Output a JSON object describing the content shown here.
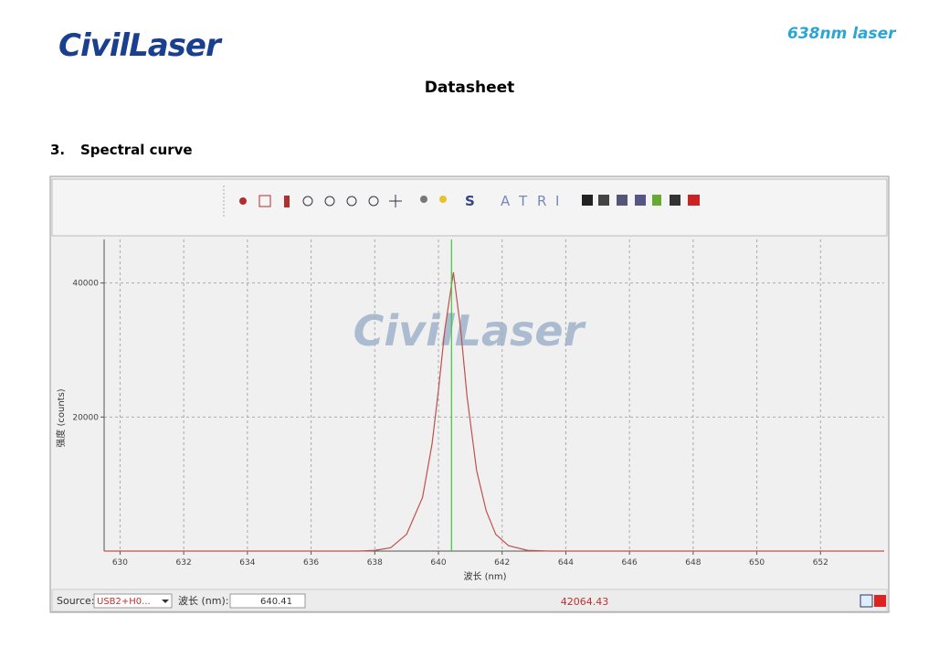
{
  "header": {
    "logo": "CivilLaser",
    "product": "638nm laser",
    "title": "Datasheet"
  },
  "section": {
    "number": "3.",
    "title": "Spectral curve"
  },
  "toolbar": {
    "letters": [
      "S",
      "A",
      "T",
      "R",
      "I"
    ]
  },
  "chart_data": {
    "type": "line",
    "watermark": "CivilLaser",
    "x_label": "波长 (nm)",
    "y_label": "强度 (counts)",
    "x": [
      629.5,
      637.5,
      638.0,
      638.5,
      639.0,
      639.5,
      639.8,
      640.0,
      640.2,
      640.47,
      640.7,
      640.9,
      641.2,
      641.5,
      641.8,
      642.2,
      642.8,
      643.5,
      654.0
    ],
    "series": [
      {
        "color": "#c0504d",
        "values": [
          0,
          0,
          100,
          500,
          2500,
          8000,
          16000,
          24000,
          33000,
          41600,
          33000,
          23000,
          12000,
          6000,
          2500,
          800,
          100,
          0,
          0
        ]
      }
    ],
    "xlim": [
      629.5,
      654
    ],
    "ylim": [
      0,
      46500
    ],
    "xticks": [
      630,
      632,
      634,
      636,
      638,
      640,
      642,
      644,
      646,
      648,
      650,
      652
    ],
    "yticks": [
      20000,
      40000
    ],
    "grid": true,
    "cursor_color": "#33cc33"
  },
  "status": {
    "source_label": "Source:",
    "source_value": "USB2+H0...",
    "wavelength_label": "波长 (nm):",
    "wavelength": 640.41,
    "intensity": 42064.43
  }
}
